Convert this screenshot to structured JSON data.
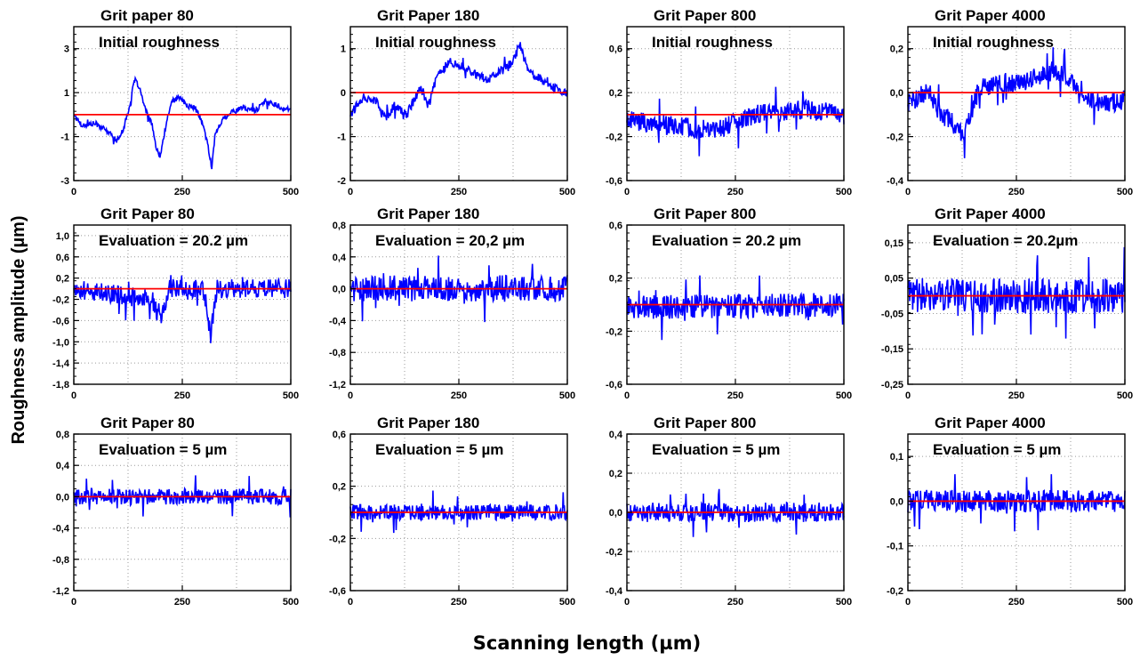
{
  "figure": {
    "ylabel": "Roughness amplitude (µm)",
    "xlabel": "Scanning length (µm)"
  },
  "chart_data": [
    {
      "type": "line",
      "title": "Grit paper 80",
      "subtitle": "Initial roughness",
      "xlim": [
        0,
        500
      ],
      "ylim": [
        -3,
        4
      ],
      "yticks": [
        "3",
        "1",
        "-1",
        "-3"
      ],
      "ytick_values": [
        3,
        1,
        -1,
        -3
      ],
      "xticks": [
        "0",
        "250",
        "500"
      ],
      "xtick_values": [
        0,
        250,
        500
      ],
      "baseline": 0,
      "grid": true,
      "profile": [
        [
          0,
          0
        ],
        [
          20,
          -0.5
        ],
        [
          50,
          -0.4
        ],
        [
          80,
          -0.8
        ],
        [
          100,
          -1.2
        ],
        [
          115,
          -0.6
        ],
        [
          130,
          0.5
        ],
        [
          140,
          1.6
        ],
        [
          150,
          1.3
        ],
        [
          165,
          0.2
        ],
        [
          180,
          -0.4
        ],
        [
          190,
          -1.6
        ],
        [
          200,
          -1.9
        ],
        [
          210,
          -0.7
        ],
        [
          225,
          0.6
        ],
        [
          245,
          0.8
        ],
        [
          260,
          0.4
        ],
        [
          280,
          0.3
        ],
        [
          300,
          -0.6
        ],
        [
          310,
          -1.5
        ],
        [
          318,
          -2.4
        ],
        [
          325,
          -1.0
        ],
        [
          340,
          -0.3
        ],
        [
          360,
          0.1
        ],
        [
          390,
          0.3
        ],
        [
          420,
          0.2
        ],
        [
          440,
          0.6
        ],
        [
          460,
          0.5
        ],
        [
          480,
          0.3
        ],
        [
          500,
          0.2
        ]
      ],
      "series": [
        {
          "color": "#0000ff",
          "noise": 0.12
        },
        {
          "name": "baseline",
          "color": "#ff0000"
        }
      ]
    },
    {
      "type": "line",
      "title": "Grit Paper 180",
      "subtitle": "Initial roughness",
      "xlim": [
        0,
        500
      ],
      "ylim": [
        -2,
        1.5
      ],
      "yticks": [
        "1",
        "0",
        "-1",
        "-2"
      ],
      "ytick_values": [
        1,
        0,
        -1,
        -2
      ],
      "xticks": [
        "0",
        "250",
        "500"
      ],
      "xtick_values": [
        0,
        250,
        500
      ],
      "baseline": 0,
      "grid": true,
      "profile": [
        [
          0,
          -0.5
        ],
        [
          30,
          -0.1
        ],
        [
          60,
          -0.2
        ],
        [
          80,
          -0.6
        ],
        [
          100,
          -0.3
        ],
        [
          130,
          -0.5
        ],
        [
          160,
          0.1
        ],
        [
          180,
          -0.3
        ],
        [
          200,
          0.4
        ],
        [
          230,
          0.7
        ],
        [
          260,
          0.6
        ],
        [
          290,
          0.4
        ],
        [
          320,
          0.3
        ],
        [
          350,
          0.5
        ],
        [
          375,
          0.7
        ],
        [
          390,
          1.1
        ],
        [
          410,
          0.5
        ],
        [
          440,
          0.3
        ],
        [
          470,
          0.1
        ],
        [
          500,
          0
        ]
      ],
      "series": [
        {
          "color": "#0000ff",
          "noise": 0.1
        },
        {
          "name": "baseline",
          "color": "#ff0000"
        }
      ]
    },
    {
      "type": "line",
      "title": "Grit Paper 800",
      "subtitle": "Initial roughness",
      "xlim": [
        0,
        500
      ],
      "ylim": [
        -0.6,
        0.8
      ],
      "yticks": [
        "0,6",
        "0,2",
        "-0,2",
        "-0,6"
      ],
      "ytick_values": [
        0.6,
        0.2,
        -0.2,
        -0.6
      ],
      "xticks": [
        "0",
        "250",
        "500"
      ],
      "xtick_values": [
        0,
        250,
        500
      ],
      "baseline": 0,
      "grid": true,
      "profile": [
        [
          0,
          -0.05
        ],
        [
          100,
          -0.1
        ],
        [
          200,
          -0.15
        ],
        [
          300,
          0
        ],
        [
          400,
          0.05
        ],
        [
          500,
          0
        ]
      ],
      "series": [
        {
          "color": "#0000ff",
          "noise": 0.09
        },
        {
          "name": "baseline",
          "color": "#ff0000"
        }
      ]
    },
    {
      "type": "line",
      "title": "Grit Paper 4000",
      "subtitle": "Initial roughness",
      "xlim": [
        0,
        500
      ],
      "ylim": [
        -0.4,
        0.3
      ],
      "yticks": [
        "0,2",
        "0,0",
        "-0,2",
        "-0,4"
      ],
      "ytick_values": [
        0.2,
        0,
        -0.2,
        -0.4
      ],
      "xticks": [
        "0",
        "250",
        "500"
      ],
      "xtick_values": [
        0,
        250,
        500
      ],
      "baseline": 0,
      "grid": true,
      "profile": [
        [
          0,
          -0.05
        ],
        [
          40,
          0
        ],
        [
          80,
          -0.1
        ],
        [
          110,
          -0.15
        ],
        [
          130,
          -0.2
        ],
        [
          160,
          0
        ],
        [
          200,
          0.05
        ],
        [
          250,
          0.04
        ],
        [
          300,
          0.08
        ],
        [
          340,
          0.1
        ],
        [
          380,
          0.05
        ],
        [
          420,
          -0.03
        ],
        [
          460,
          -0.05
        ],
        [
          500,
          -0.03
        ]
      ],
      "series": [
        {
          "color": "#0000ff",
          "noise": 0.045
        },
        {
          "name": "baseline",
          "color": "#ff0000"
        }
      ]
    },
    {
      "type": "line",
      "title": "Grit Paper 80",
      "subtitle": "Evaluation = 20.2 µm",
      "xlim": [
        0,
        500
      ],
      "ylim": [
        -1.8,
        1.2
      ],
      "yticks": [
        "1,0",
        "0,6",
        "0,2",
        "-0,2",
        "-0,6",
        "-1,0",
        "-1,4",
        "-1,8"
      ],
      "ytick_values": [
        1.0,
        0.6,
        0.2,
        -0.2,
        -0.6,
        -1.0,
        -1.4,
        -1.8
      ],
      "xticks": [
        "0",
        "250",
        "500"
      ],
      "xtick_values": [
        0,
        250,
        500
      ],
      "baseline": 0,
      "grid": true,
      "profile": [
        [
          0,
          0
        ],
        [
          180,
          -0.2
        ],
        [
          200,
          -0.6
        ],
        [
          220,
          0
        ],
        [
          300,
          0
        ],
        [
          315,
          -0.9
        ],
        [
          330,
          0
        ],
        [
          500,
          0
        ]
      ],
      "series": [
        {
          "color": "#0000ff",
          "noise": 0.18
        },
        {
          "name": "baseline",
          "color": "#ff0000"
        }
      ]
    },
    {
      "type": "line",
      "title": "Grit Paper 180",
      "subtitle": "Evaluation = 20,2 µm",
      "xlim": [
        0,
        500
      ],
      "ylim": [
        -1.2,
        0.8
      ],
      "yticks": [
        "0,8",
        "0,4",
        "0,0",
        "-0,4",
        "-0,8",
        "-1,2"
      ],
      "ytick_values": [
        0.8,
        0.4,
        0,
        -0.4,
        -0.8,
        -1.2
      ],
      "xticks": [
        "0",
        "250",
        "500"
      ],
      "xtick_values": [
        0,
        250,
        500
      ],
      "baseline": 0,
      "grid": true,
      "profile": [
        [
          0,
          0
        ],
        [
          500,
          0
        ]
      ],
      "series": [
        {
          "color": "#0000ff",
          "noise": 0.17
        },
        {
          "name": "baseline",
          "color": "#ff0000"
        }
      ]
    },
    {
      "type": "line",
      "title": "Grit Paper 800",
      "subtitle": "Evaluation = 20.2 µm",
      "xlim": [
        0,
        500
      ],
      "ylim": [
        -0.6,
        0.6
      ],
      "yticks": [
        "0,6",
        "0,2",
        "-0,2",
        "-0,6"
      ],
      "ytick_values": [
        0.6,
        0.2,
        -0.2,
        -0.6
      ],
      "xticks": [
        "0",
        "250",
        "500"
      ],
      "xtick_values": [
        0,
        250,
        500
      ],
      "baseline": 0,
      "grid": true,
      "profile": [
        [
          0,
          -0.02
        ],
        [
          500,
          0
        ]
      ],
      "series": [
        {
          "color": "#0000ff",
          "noise": 0.09
        },
        {
          "name": "baseline",
          "color": "#ff0000"
        }
      ]
    },
    {
      "type": "line",
      "title": "Grit Paper 4000",
      "subtitle": "Evaluation = 20.2µm",
      "xlim": [
        0,
        500
      ],
      "ylim": [
        -0.25,
        0.2
      ],
      "yticks": [
        "0,15",
        "0,05",
        "-0,05",
        "-0,15",
        "-0,25"
      ],
      "ytick_values": [
        0.15,
        0.05,
        -0.05,
        -0.15,
        -0.25
      ],
      "xticks": [
        "0",
        "250",
        "500"
      ],
      "xtick_values": [
        0,
        250,
        500
      ],
      "baseline": 0,
      "grid": true,
      "profile": [
        [
          0,
          0
        ],
        [
          500,
          0
        ]
      ],
      "series": [
        {
          "color": "#0000ff",
          "noise": 0.05
        },
        {
          "name": "baseline",
          "color": "#ff0000"
        }
      ]
    },
    {
      "type": "line",
      "title": "Grit Paper 80",
      "subtitle": "Evaluation = 5 µm",
      "xlim": [
        0,
        500
      ],
      "ylim": [
        -1.2,
        0.8
      ],
      "yticks": [
        "0,8",
        "0,4",
        "0,0",
        "-0,4",
        "-0,8",
        "-1,2"
      ],
      "ytick_values": [
        0.8,
        0.4,
        0,
        -0.4,
        -0.8,
        -1.2
      ],
      "xticks": [
        "0",
        "250",
        "500"
      ],
      "xtick_values": [
        0,
        250,
        500
      ],
      "baseline": 0,
      "grid": true,
      "profile": [
        [
          0,
          0
        ],
        [
          500,
          0
        ]
      ],
      "series": [
        {
          "color": "#0000ff",
          "noise": 0.1
        },
        {
          "name": "baseline",
          "color": "#ff0000"
        }
      ]
    },
    {
      "type": "line",
      "title": "Grit Paper 180",
      "subtitle": "Evaluation = 5 µm",
      "xlim": [
        0,
        500
      ],
      "ylim": [
        -0.6,
        0.6
      ],
      "yticks": [
        "0,6",
        "0,2",
        "-0,2",
        "-0,6"
      ],
      "ytick_values": [
        0.6,
        0.2,
        -0.2,
        -0.6
      ],
      "xticks": [
        "0",
        "250",
        "500"
      ],
      "xtick_values": [
        0,
        250,
        500
      ],
      "baseline": 0,
      "grid": true,
      "profile": [
        [
          0,
          0
        ],
        [
          500,
          0
        ]
      ],
      "series": [
        {
          "color": "#0000ff",
          "noise": 0.06
        },
        {
          "name": "baseline",
          "color": "#ff0000"
        }
      ]
    },
    {
      "type": "line",
      "title": "Grit Paper 800",
      "subtitle": "Evaluation = 5 µm",
      "xlim": [
        0,
        500
      ],
      "ylim": [
        -0.4,
        0.4
      ],
      "yticks": [
        "0,4",
        "0,2",
        "0,0",
        "-0,2",
        "-0,4"
      ],
      "ytick_values": [
        0.4,
        0.2,
        0,
        -0.2,
        -0.4
      ],
      "xticks": [
        "0",
        "250",
        "500"
      ],
      "xtick_values": [
        0,
        250,
        500
      ],
      "baseline": 0,
      "grid": true,
      "profile": [
        [
          0,
          0
        ],
        [
          500,
          0
        ]
      ],
      "series": [
        {
          "color": "#0000ff",
          "noise": 0.05
        },
        {
          "name": "baseline",
          "color": "#ff0000"
        }
      ]
    },
    {
      "type": "line",
      "title": "Grit Paper 4000",
      "subtitle": "Evaluation = 5 µm",
      "xlim": [
        0,
        500
      ],
      "ylim": [
        -0.2,
        0.15
      ],
      "yticks": [
        "0,1",
        "0,0",
        "-0,1",
        "-0,2"
      ],
      "ytick_values": [
        0.1,
        0,
        -0.1,
        -0.2
      ],
      "xticks": [
        "0",
        "250",
        "500"
      ],
      "xtick_values": [
        0,
        250,
        500
      ],
      "baseline": 0,
      "grid": true,
      "profile": [
        [
          0,
          0
        ],
        [
          500,
          0
        ]
      ],
      "series": [
        {
          "color": "#0000ff",
          "noise": 0.025
        },
        {
          "name": "baseline",
          "color": "#ff0000"
        }
      ]
    }
  ]
}
